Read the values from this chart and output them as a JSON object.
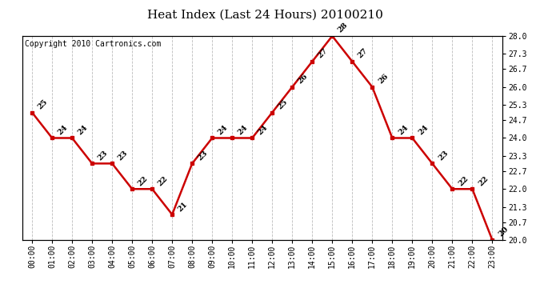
{
  "title": "Heat Index (Last 24 Hours) 20100210",
  "copyright": "Copyright 2010 Cartronics.com",
  "hours": [
    "00:00",
    "01:00",
    "02:00",
    "03:00",
    "04:00",
    "05:00",
    "06:00",
    "07:00",
    "08:00",
    "09:00",
    "10:00",
    "11:00",
    "12:00",
    "13:00",
    "14:00",
    "15:00",
    "16:00",
    "17:00",
    "18:00",
    "19:00",
    "20:00",
    "21:00",
    "22:00",
    "23:00"
  ],
  "values": [
    25,
    24,
    24,
    23,
    23,
    22,
    22,
    21,
    23,
    24,
    24,
    24,
    25,
    26,
    27,
    28,
    27,
    26,
    24,
    24,
    23,
    22,
    22,
    20
  ],
  "ylim": [
    20.0,
    28.0
  ],
  "yticks_right": [
    20.0,
    20.7,
    21.3,
    22.0,
    22.7,
    23.3,
    24.0,
    24.7,
    25.3,
    26.0,
    26.7,
    27.3,
    28.0
  ],
  "line_color": "#cc0000",
  "marker_color": "#cc0000",
  "bg_color": "#ffffff",
  "plot_bg": "#ffffff",
  "grid_color": "#bbbbbb",
  "title_fontsize": 11,
  "copyright_fontsize": 7,
  "annotation_fontsize": 7,
  "tick_fontsize": 7
}
